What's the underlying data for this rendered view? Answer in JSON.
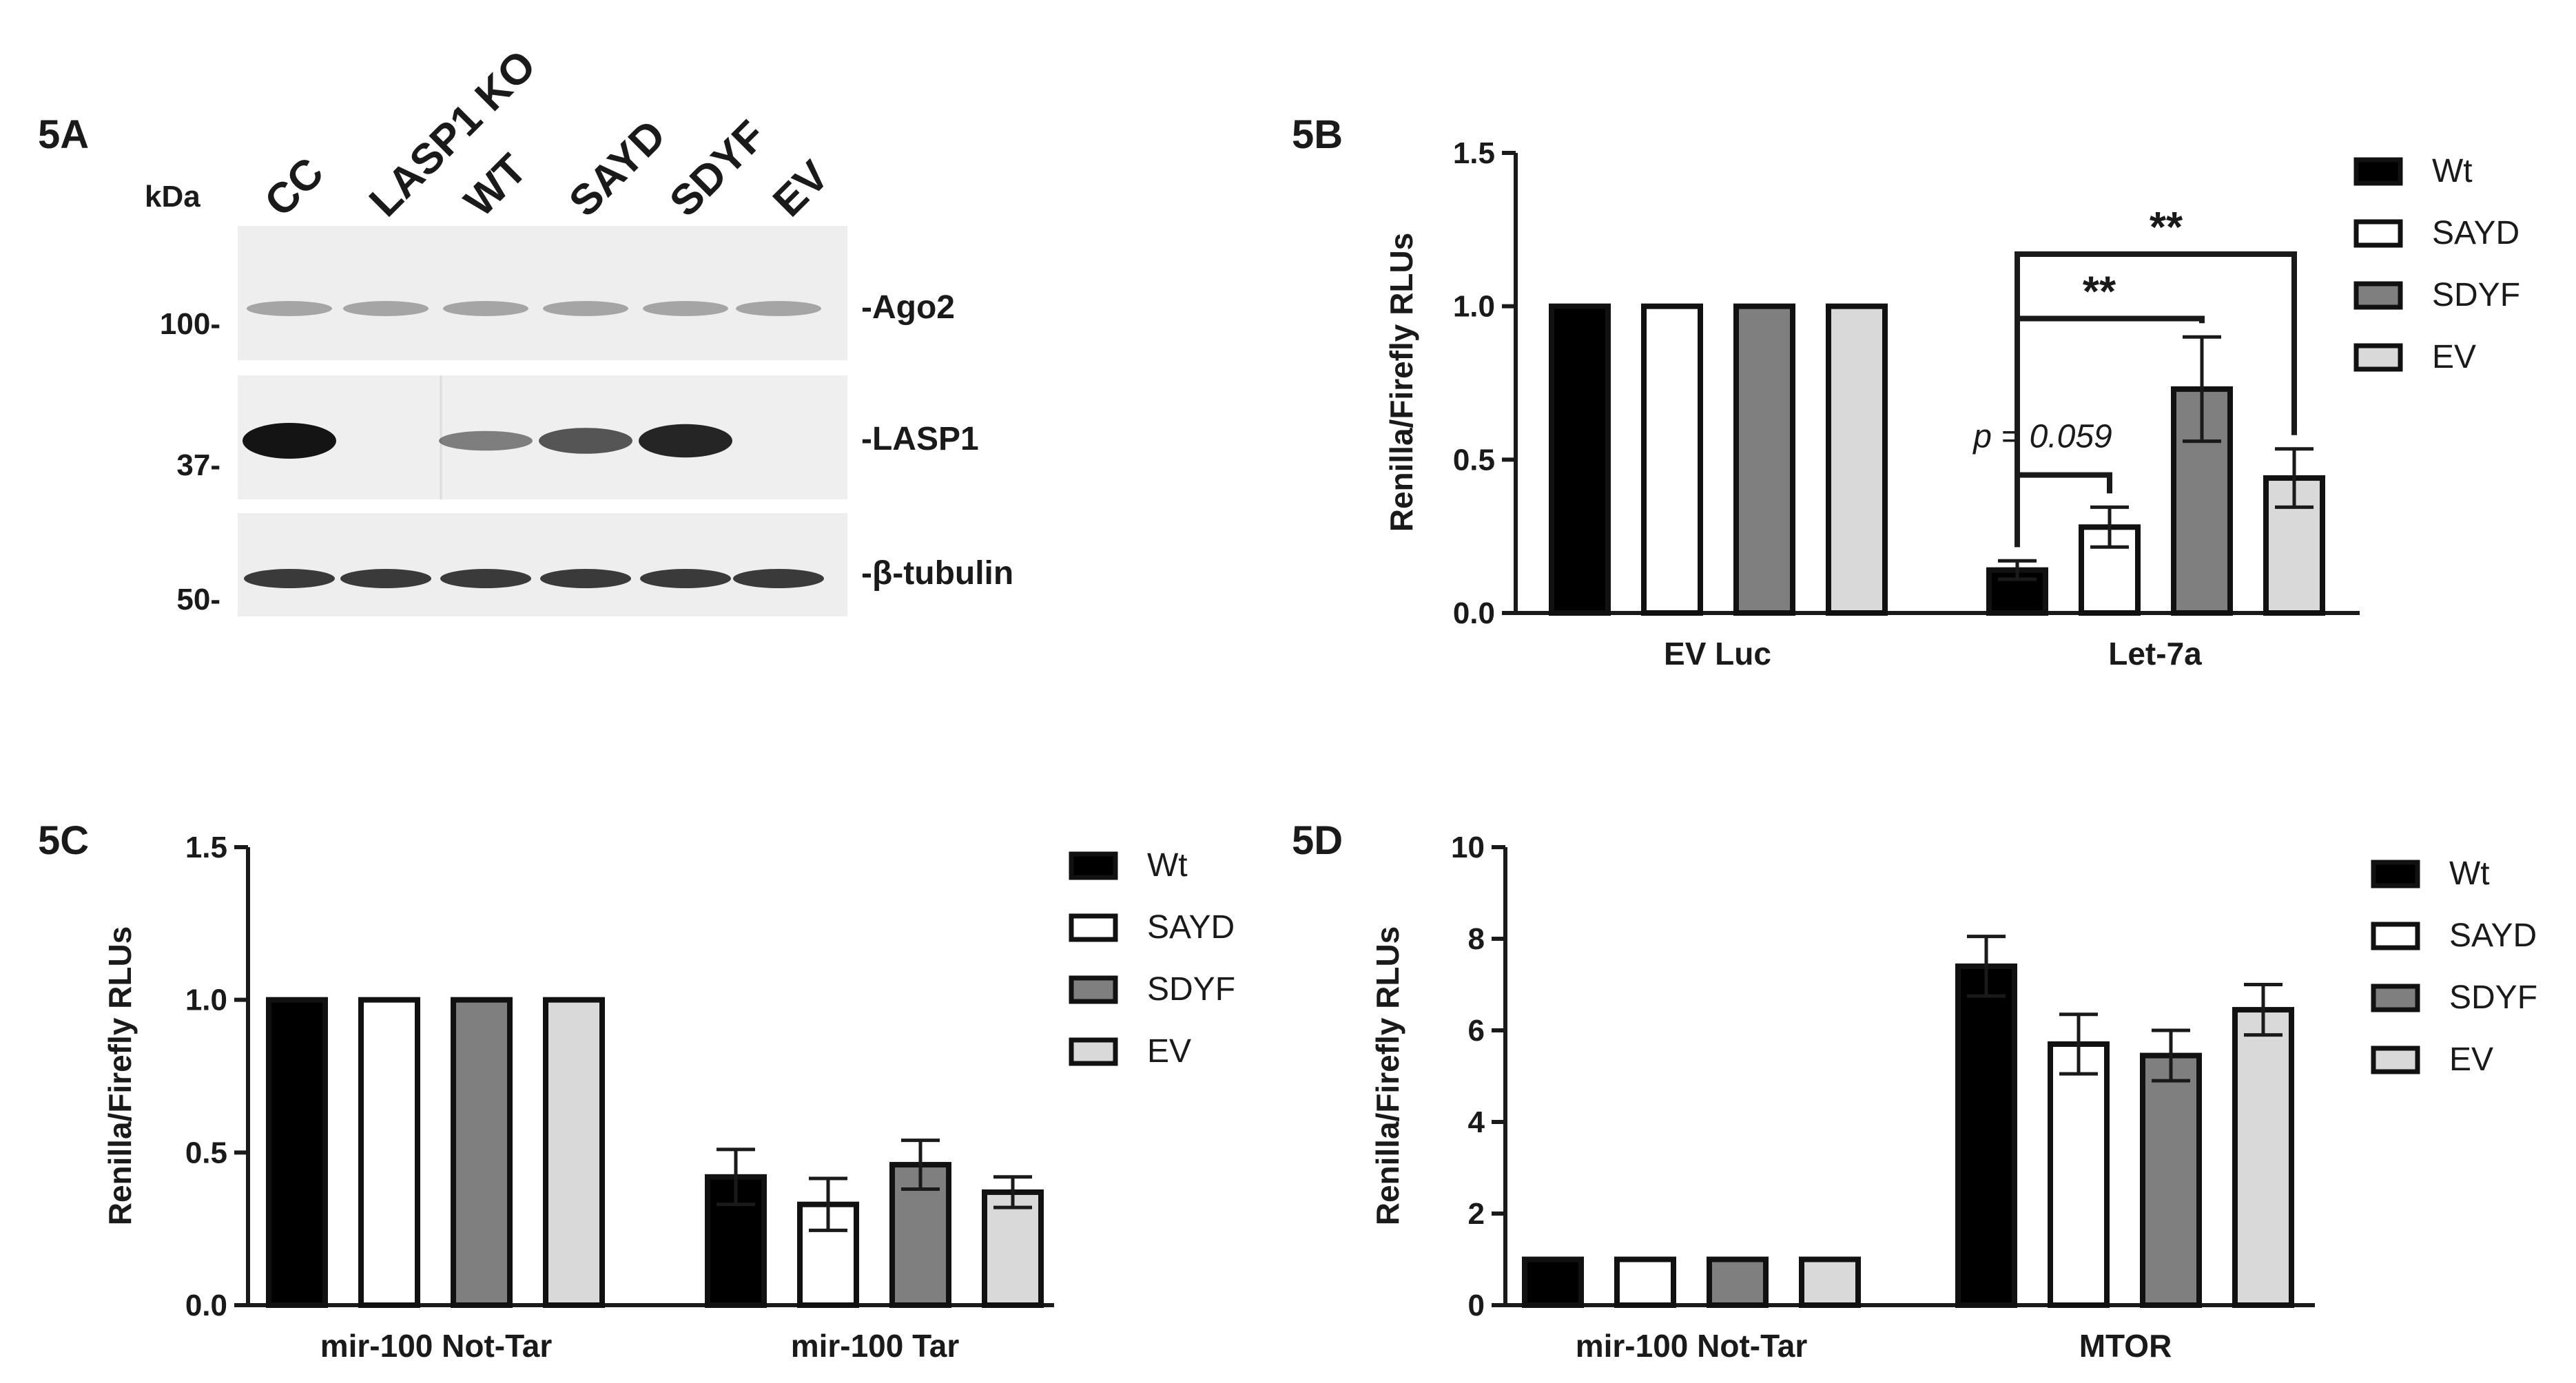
{
  "blot": {
    "panel_label": "5A",
    "kda_label": "kDa",
    "lanes": [
      "CC",
      "LASP1 KO",
      "WT",
      "SAYD",
      "SDYF",
      "EV"
    ],
    "markers": [
      "100-",
      "37-",
      "50-"
    ],
    "bands": [
      "-Ago2",
      "-LASP1",
      "-β-tubulin"
    ],
    "lasp1_intensity": [
      1.0,
      0.0,
      0.35,
      0.6,
      0.9,
      0.0
    ]
  },
  "colors": {
    "Wt": "#000000",
    "SAYD": "#ffffff",
    "SDYF": "#7f7f7f",
    "EV": "#d9d9d9"
  },
  "chart_data": [
    {
      "panel": "5B",
      "type": "bar",
      "ylabel": "Renilla/Firefly RLUs",
      "categories": [
        "EV Luc",
        "Let-7a"
      ],
      "ylim": [
        0,
        1.5
      ],
      "yticks": [
        "0.0",
        "0.5",
        "1.0",
        "1.5"
      ],
      "series": [
        {
          "name": "Wt",
          "values": [
            1.0,
            0.14
          ],
          "errors": [
            null,
            0.03
          ]
        },
        {
          "name": "SAYD",
          "values": [
            1.0,
            0.28
          ],
          "errors": [
            null,
            0.065
          ]
        },
        {
          "name": "SDYF",
          "values": [
            1.0,
            0.73
          ],
          "errors": [
            null,
            0.17
          ]
        },
        {
          "name": "EV",
          "values": [
            1.0,
            0.44
          ],
          "errors": [
            null,
            0.095
          ]
        }
      ],
      "annotations": [
        "**",
        "**",
        "p = 0.059"
      ]
    },
    {
      "panel": "5C",
      "type": "bar",
      "ylabel": "Renilla/Firefly RLUs",
      "categories": [
        "mir-100 Not-Tar",
        "mir-100 Tar"
      ],
      "ylim": [
        0,
        1.5
      ],
      "yticks": [
        "0.0",
        "0.5",
        "1.0",
        "1.5"
      ],
      "series": [
        {
          "name": "Wt",
          "values": [
            1.0,
            0.42
          ],
          "errors": [
            null,
            0.09
          ]
        },
        {
          "name": "SAYD",
          "values": [
            1.0,
            0.33
          ],
          "errors": [
            null,
            0.085
          ]
        },
        {
          "name": "SDYF",
          "values": [
            1.0,
            0.46
          ],
          "errors": [
            null,
            0.08
          ]
        },
        {
          "name": "EV",
          "values": [
            1.0,
            0.37
          ],
          "errors": [
            null,
            0.05
          ]
        }
      ]
    },
    {
      "panel": "5D",
      "type": "bar",
      "ylabel": "Renilla/Firefly RLUs",
      "categories": [
        "mir-100 Not-Tar",
        "MTOR"
      ],
      "ylim": [
        0,
        10
      ],
      "yticks": [
        "0",
        "2",
        "4",
        "6",
        "8",
        "10"
      ],
      "series": [
        {
          "name": "Wt",
          "values": [
            1.0,
            7.4
          ],
          "errors": [
            null,
            0.65
          ]
        },
        {
          "name": "SAYD",
          "values": [
            1.0,
            5.7
          ],
          "errors": [
            null,
            0.65
          ]
        },
        {
          "name": "SDYF",
          "values": [
            1.0,
            5.45
          ],
          "errors": [
            null,
            0.55
          ]
        },
        {
          "name": "EV",
          "values": [
            1.0,
            6.45
          ],
          "errors": [
            null,
            0.55
          ]
        }
      ]
    }
  ]
}
